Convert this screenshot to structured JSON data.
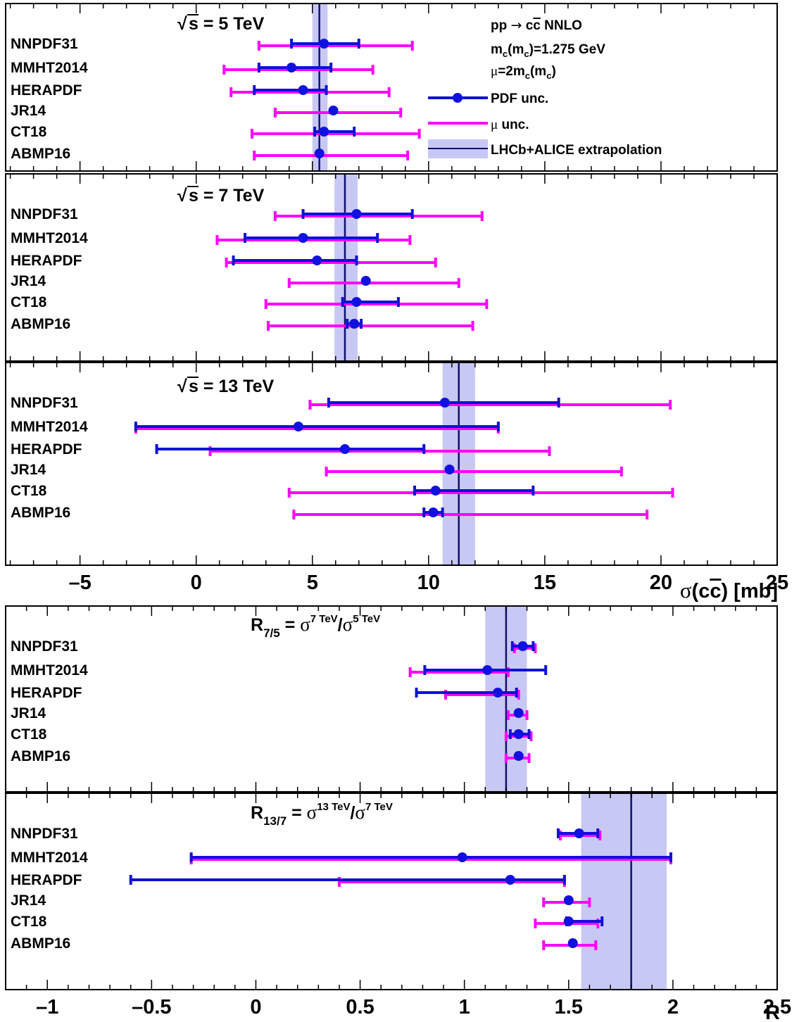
{
  "chart_data": [
    {
      "type": "errorbar",
      "panel": "sigma_5TeV",
      "title": "√s = 5 TeV",
      "xlabel": "σ(cc̄) [mb]",
      "xlim": [
        -8.2,
        25
      ],
      "pdfs": [
        "NNPDF31",
        "MMHT2014",
        "HERAPDF",
        "JR14",
        "CT18",
        "ABMP16"
      ],
      "central": [
        5.5,
        4.1,
        4.6,
        5.9,
        5.5,
        5.3
      ],
      "pdf_unc": [
        [
          4.1,
          7.0
        ],
        [
          2.7,
          5.8
        ],
        [
          2.5,
          5.6
        ],
        null,
        [
          5.1,
          6.8
        ],
        null
      ],
      "mu_unc": [
        [
          2.7,
          9.3
        ],
        [
          1.2,
          7.6
        ],
        [
          1.5,
          8.3
        ],
        [
          3.4,
          8.8
        ],
        [
          2.4,
          9.6
        ],
        [
          2.5,
          9.1
        ]
      ],
      "band": {
        "center": 5.3,
        "low": 5.0,
        "high": 5.65,
        "label": "LHCb+ALICE extrapolation"
      }
    },
    {
      "type": "errorbar",
      "panel": "sigma_7TeV",
      "title": "√s = 7 TeV",
      "xlabel": "σ(cc̄) [mb]",
      "xlim": [
        -8.2,
        25
      ],
      "pdfs": [
        "NNPDF31",
        "MMHT2014",
        "HERAPDF",
        "JR14",
        "CT18",
        "ABMP16"
      ],
      "central": [
        6.9,
        4.6,
        5.2,
        7.3,
        6.9,
        6.8
      ],
      "pdf_unc": [
        [
          4.6,
          9.3
        ],
        [
          2.1,
          7.8
        ],
        [
          1.6,
          6.9
        ],
        null,
        [
          6.3,
          8.7
        ],
        [
          6.5,
          7.1
        ]
      ],
      "mu_unc": [
        [
          3.4,
          12.3
        ],
        [
          0.9,
          9.2
        ],
        [
          1.3,
          10.3
        ],
        [
          4.0,
          11.3
        ],
        [
          3.0,
          12.5
        ],
        [
          3.1,
          11.9
        ]
      ],
      "band": {
        "center": 6.4,
        "low": 5.95,
        "high": 6.95,
        "label": "LHCb+ALICE extrapolation"
      }
    },
    {
      "type": "errorbar",
      "panel": "sigma_13TeV",
      "title": "√s = 13 TeV",
      "xlabel": "σ(cc̄) [mb]",
      "xlim": [
        -8.2,
        25
      ],
      "xticks": [
        -5,
        0,
        5,
        10,
        15,
        20,
        25
      ],
      "pdfs": [
        "NNPDF31",
        "MMHT2014",
        "HERAPDF",
        "JR14",
        "CT18",
        "ABMP16"
      ],
      "central": [
        10.7,
        4.4,
        6.4,
        10.9,
        10.3,
        10.2
      ],
      "pdf_unc": [
        [
          5.7,
          15.6
        ],
        [
          -2.6,
          13.0
        ],
        [
          -1.7,
          9.8
        ],
        null,
        [
          9.4,
          14.5
        ],
        [
          9.8,
          10.6
        ]
      ],
      "mu_unc": [
        [
          4.9,
          20.4
        ],
        [
          -2.6,
          13.0
        ],
        [
          0.6,
          15.2
        ],
        [
          5.6,
          18.3
        ],
        [
          4.0,
          20.5
        ],
        [
          4.2,
          19.4
        ]
      ],
      "band": {
        "center": 11.3,
        "low": 10.6,
        "high": 12.0,
        "label": "LHCb+ALICE extrapolation"
      }
    },
    {
      "type": "errorbar",
      "panel": "R_7_5",
      "title": "R7/5 = σ7 TeV/σ5 TeV",
      "xlabel": "R",
      "xlim": [
        -1.2,
        2.5
      ],
      "pdfs": [
        "NNPDF31",
        "MMHT2014",
        "HERAPDF",
        "JR14",
        "CT18",
        "ABMP16"
      ],
      "central": [
        1.28,
        1.11,
        1.16,
        1.26,
        1.26,
        1.26
      ],
      "pdf_unc": [
        [
          1.23,
          1.33
        ],
        [
          0.81,
          1.39
        ],
        [
          0.77,
          1.25
        ],
        null,
        [
          1.22,
          1.31
        ],
        null
      ],
      "mu_unc": [
        [
          1.24,
          1.34
        ],
        [
          0.74,
          1.21
        ],
        [
          0.91,
          1.26
        ],
        [
          1.21,
          1.3
        ],
        [
          1.2,
          1.32
        ],
        [
          1.2,
          1.31
        ]
      ],
      "band": {
        "center": 1.2,
        "low": 1.1,
        "high": 1.3
      }
    },
    {
      "type": "errorbar",
      "panel": "R_13_7",
      "title": "R13/7 = σ13 TeV/σ7 TeV",
      "xlabel": "R",
      "xlim": [
        -1.2,
        2.5
      ],
      "xticks": [
        -1,
        -0.5,
        0,
        0.5,
        1,
        1.5,
        2,
        2.5
      ],
      "pdfs": [
        "NNPDF31",
        "MMHT2014",
        "HERAPDF",
        "JR14",
        "CT18",
        "ABMP16"
      ],
      "central": [
        1.55,
        0.99,
        1.22,
        1.5,
        1.5,
        1.52
      ],
      "pdf_unc": [
        [
          1.45,
          1.64
        ],
        [
          -0.31,
          1.99
        ],
        [
          -0.6,
          1.48
        ],
        null,
        [
          1.49,
          1.66
        ],
        null
      ],
      "mu_unc": [
        [
          1.46,
          1.65
        ],
        [
          -0.31,
          1.99
        ],
        [
          0.4,
          1.48
        ],
        [
          1.38,
          1.6
        ],
        [
          1.34,
          1.64
        ],
        [
          1.38,
          1.63
        ]
      ],
      "band": {
        "center": 1.8,
        "low": 1.56,
        "high": 1.97
      }
    }
  ],
  "legend": {
    "process": "pp → cc̄ NNLO",
    "mass": "mc(mc)=1.275 GeV",
    "scale": "μ=2mc(mc)",
    "pdf_unc": "PDF unc.",
    "mu_unc": "μ unc.",
    "band": "LHCb+ALICE extrapolation"
  },
  "colors": {
    "pdf": "#1010d8",
    "mu": "#ff00ff",
    "band": "#c8c8f4",
    "band_line": "#101070",
    "marker": "#1010e0"
  },
  "axis1": {
    "label": "σ(cc̄) [mb]",
    "ticks": [
      "–5",
      "0",
      "5",
      "10",
      "15",
      "20",
      "25"
    ]
  },
  "axis2": {
    "label": "R",
    "ticks": [
      "–1",
      "–0.5",
      "0",
      "0.5",
      "1",
      "1.5",
      "2",
      "2.5"
    ]
  }
}
